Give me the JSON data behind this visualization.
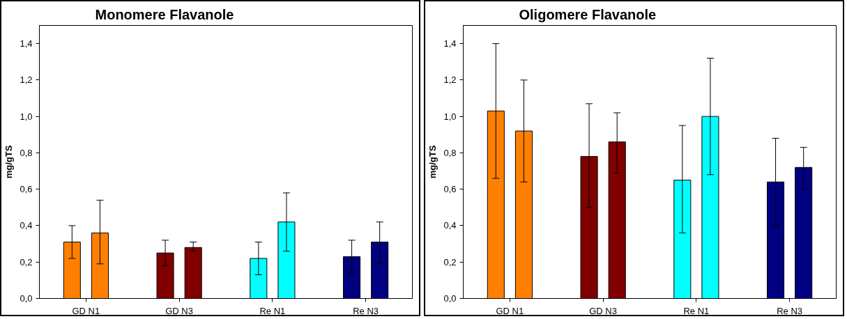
{
  "chart_data": [
    {
      "type": "bar",
      "title": "Monomere Flavanole",
      "ylabel": "mg/gTS",
      "categories": [
        "GD N1",
        "GD N3",
        "Re N1",
        "Re N3"
      ],
      "ylim": [
        0,
        1.5
      ],
      "yticks": [
        {
          "value": 0,
          "label": "0,0"
        },
        {
          "value": 0.2,
          "label": "0,2"
        },
        {
          "value": 0.4,
          "label": "0,4"
        },
        {
          "value": 0.6,
          "label": "0,6"
        },
        {
          "value": 0.8,
          "label": "0,8"
        },
        {
          "value": 1.0,
          "label": "1,0"
        },
        {
          "value": 1.2,
          "label": "1,2"
        },
        {
          "value": 1.4,
          "label": "1,4"
        }
      ],
      "grid": false,
      "series": [
        {
          "colors": [
            "#ff8000",
            "#800000",
            "#00ffff",
            "#000080"
          ],
          "values": [
            0.31,
            0.25,
            0.22,
            0.23
          ],
          "errors": [
            [
              0.22,
              0.4
            ],
            [
              0.18,
              0.32
            ],
            [
              0.13,
              0.31
            ],
            [
              0.14,
              0.32
            ]
          ]
        },
        {
          "colors": [
            "#ff8000",
            "#800000",
            "#00ffff",
            "#000080"
          ],
          "values": [
            0.36,
            0.28,
            0.42,
            0.31
          ],
          "errors": [
            [
              0.19,
              0.54
            ],
            [
              0.26,
              0.31
            ],
            [
              0.26,
              0.58
            ],
            [
              0.19,
              0.42
            ]
          ]
        }
      ]
    },
    {
      "type": "bar",
      "title": "Oligomere Flavanole",
      "ylabel": "mg/gTS",
      "categories": [
        "GD N1",
        "GD N3",
        "Re N1",
        "Re N3"
      ],
      "ylim": [
        0,
        1.5
      ],
      "yticks": [
        {
          "value": 0,
          "label": "0,0"
        },
        {
          "value": 0.2,
          "label": "0,2"
        },
        {
          "value": 0.4,
          "label": "0,4"
        },
        {
          "value": 0.6,
          "label": "0,6"
        },
        {
          "value": 0.8,
          "label": "0,8"
        },
        {
          "value": 1.0,
          "label": "1,0"
        },
        {
          "value": 1.2,
          "label": "1,2"
        },
        {
          "value": 1.4,
          "label": "1,4"
        }
      ],
      "grid": false,
      "series": [
        {
          "colors": [
            "#ff8000",
            "#800000",
            "#00ffff",
            "#000080"
          ],
          "values": [
            1.03,
            0.78,
            0.65,
            0.64
          ],
          "errors": [
            [
              0.66,
              1.4
            ],
            [
              0.5,
              1.07
            ],
            [
              0.36,
              0.95
            ],
            [
              0.4,
              0.88
            ]
          ]
        },
        {
          "colors": [
            "#ff8000",
            "#800000",
            "#00ffff",
            "#000080"
          ],
          "values": [
            0.92,
            0.86,
            1.0,
            0.72
          ],
          "errors": [
            [
              0.64,
              1.2
            ],
            [
              0.69,
              1.02
            ],
            [
              0.68,
              1.32
            ],
            [
              0.6,
              0.83
            ]
          ]
        }
      ]
    }
  ]
}
